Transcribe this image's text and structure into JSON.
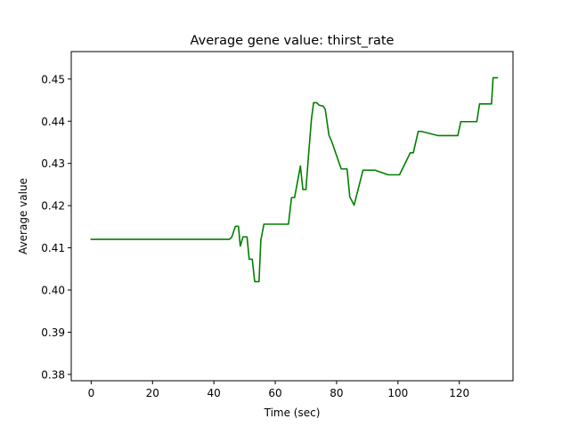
{
  "chart_data": {
    "type": "line",
    "title": "Average gene value: thirst_rate",
    "xlabel": "Time (sec)",
    "ylabel": "Average value",
    "xlim": [
      -6.5,
      137.5
    ],
    "ylim": [
      0.3785,
      0.4565
    ],
    "xticks": [
      0,
      20,
      40,
      60,
      80,
      100,
      120
    ],
    "yticks": [
      0.38,
      0.39,
      0.4,
      0.41,
      0.42,
      0.43,
      0.44,
      0.45
    ],
    "ytick_labels": [
      "0.38",
      "0.39",
      "0.40",
      "0.41",
      "0.42",
      "0.43",
      "0.44",
      "0.45"
    ],
    "grid": false,
    "series": [
      {
        "color": "#008000",
        "x": [
          0,
          45,
          45.8,
          47,
          48,
          48.6,
          49.5,
          50.8,
          51.5,
          52.5,
          53.3,
          54.7,
          55.3,
          56.3,
          58,
          64.3,
          65.3,
          66.3,
          68.2,
          69,
          70,
          70.8,
          71.8,
          72.5,
          73.5,
          74.3,
          75.6,
          76.3,
          77.5,
          78.4,
          81.5,
          82.4,
          83.4,
          84.3,
          85.7,
          88.6,
          89.5,
          92.5,
          96.8,
          97.5,
          98.5,
          99.5,
          100.5,
          104,
          105,
          106.6,
          107.5,
          113,
          113.8,
          119.5,
          120.5,
          125.7,
          126.6,
          127.5,
          129.5,
          130.5,
          131,
          132.4
        ],
        "y": [
          0.412,
          0.412,
          0.4125,
          0.4151,
          0.4151,
          0.4104,
          0.4126,
          0.4126,
          0.4073,
          0.4073,
          0.402,
          0.402,
          0.4118,
          0.4156,
          0.4156,
          0.4156,
          0.4219,
          0.4219,
          0.4294,
          0.4238,
          0.4238,
          0.4315,
          0.4405,
          0.4444,
          0.4444,
          0.4438,
          0.4436,
          0.4428,
          0.4367,
          0.4352,
          0.4287,
          0.4287,
          0.4287,
          0.4221,
          0.4201,
          0.4284,
          0.4284,
          0.4284,
          0.4273,
          0.4273,
          0.4273,
          0.4273,
          0.4273,
          0.4325,
          0.4325,
          0.4376,
          0.4376,
          0.4366,
          0.4366,
          0.4366,
          0.4399,
          0.4399,
          0.4441,
          0.4441,
          0.4441,
          0.4441,
          0.4503,
          0.4503
        ]
      }
    ]
  }
}
